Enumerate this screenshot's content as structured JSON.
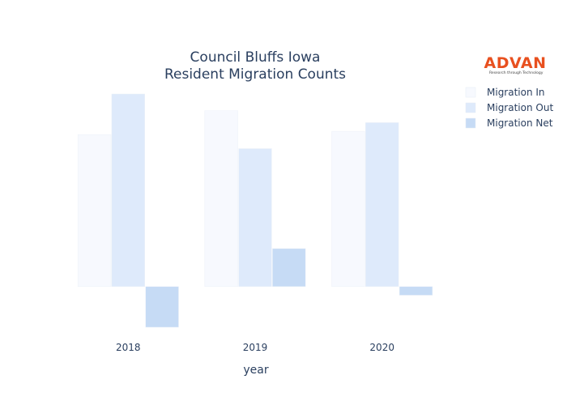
{
  "chart_data": {
    "type": "bar",
    "title": [
      "Council Bluffs Iowa",
      "Resident Migration Counts"
    ],
    "xlabel": "year",
    "ylabel": "",
    "categories": [
      "2018",
      "2019",
      "2020"
    ],
    "series": [
      {
        "name": "Migration In",
        "values": [
          1140,
          1320,
          1165
        ],
        "color": "#f7f9fe"
      },
      {
        "name": "Migration Out",
        "values": [
          1445,
          1035,
          1230
        ],
        "color": "#deeafb"
      },
      {
        "name": "Migration Net",
        "values": [
          -305,
          285,
          -65
        ],
        "color": "#c6dbf5"
      }
    ],
    "ylim": [
      -305,
      1445
    ],
    "grid": false,
    "legend_position": "top-right"
  },
  "logo": {
    "name": "ADVAN",
    "tagline": "Research through Technology"
  }
}
